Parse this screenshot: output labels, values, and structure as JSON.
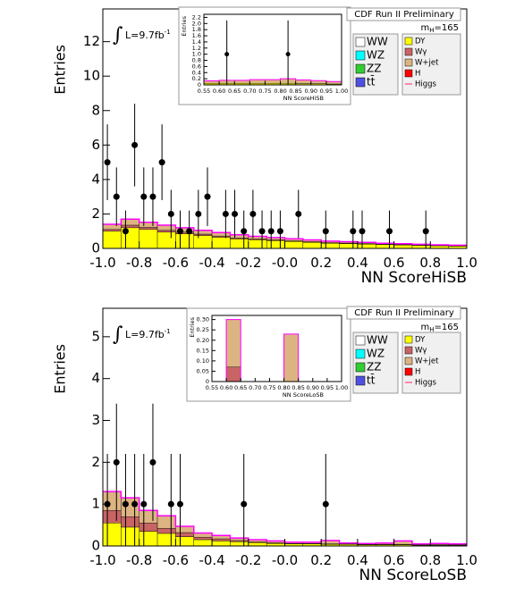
{
  "chart_data": [
    {
      "type": "histogram",
      "title": "CDF Run II Preliminary",
      "mass_label": {
        "text": "m",
        "sub": "H",
        "rest": "=165"
      },
      "lumi": {
        "symbol": "∫",
        "text": "L=9.7fb",
        "sup": "-1"
      },
      "xlabel": "NN ScoreHiSB",
      "ylabel": "Entries",
      "xlim": [
        -1,
        1
      ],
      "ylim": [
        0,
        13.9
      ],
      "xticks": [
        {
          "value": -1,
          "label": "-1.0"
        },
        -0.8,
        -0.6,
        -0.4,
        -0.2,
        {
          "value": 0,
          "label": "-0.0"
        },
        0.2,
        0.4,
        0.6,
        0.8,
        {
          "value": 1,
          "label": "1.0"
        }
      ],
      "yticks": [
        0,
        2,
        4,
        6,
        8,
        10,
        12
      ],
      "bins": [
        -1,
        -0.9,
        -0.8,
        -0.7,
        -0.6,
        -0.5,
        -0.4,
        -0.3,
        -0.2,
        -0.1,
        0,
        0.1,
        0.2,
        0.3,
        0.4,
        0.5,
        0.6,
        0.7,
        0.8,
        0.9,
        1
      ],
      "series": [
        {
          "name": "DY",
          "color": "#ffff00",
          "values": [
            1.0,
            1.2,
            1.1,
            0.95,
            0.85,
            0.75,
            0.65,
            0.55,
            0.5,
            0.45,
            0.4,
            0.35,
            0.3,
            0.28,
            0.25,
            0.22,
            0.2,
            0.17,
            0.15,
            0.13
          ]
        },
        {
          "name": "Wγ",
          "color": "#c86464",
          "values": [
            0.1,
            0.15,
            0.12,
            0.1,
            0.1,
            0.08,
            0.07,
            0.06,
            0.05,
            0.05,
            0.04,
            0.04,
            0.03,
            0.03,
            0.03,
            0.02,
            0.02,
            0.02,
            0.02,
            0.02
          ]
        },
        {
          "name": "W+jet",
          "color": "#dcb482",
          "values": [
            0.3,
            0.35,
            0.3,
            0.3,
            0.25,
            0.22,
            0.2,
            0.18,
            0.15,
            0.13,
            0.12,
            0.1,
            0.09,
            0.08,
            0.07,
            0.06,
            0.05,
            0.05,
            0.04,
            0.04
          ]
        }
      ],
      "legend": [
        {
          "name": "WW",
          "color": "#ffffff"
        },
        {
          "name": "WZ",
          "color": "#00ffff"
        },
        {
          "name": "ZZ",
          "color": "#33cc33"
        },
        {
          "name": "tt̄",
          "color": "#5050e0"
        },
        {
          "name": "H",
          "color": "#ff0000"
        },
        {
          "name": "Higgs",
          "color": "#ff6699",
          "line": true
        }
      ],
      "points": {
        "x": [
          -0.975,
          -0.925,
          -0.875,
          -0.825,
          -0.775,
          -0.725,
          -0.675,
          -0.625,
          -0.575,
          -0.525,
          -0.475,
          -0.425,
          -0.325,
          -0.275,
          -0.225,
          -0.175,
          -0.125,
          -0.075,
          -0.025,
          0.075,
          0.225,
          0.375,
          0.425,
          0.575,
          0.775
        ],
        "y": [
          5,
          3,
          1,
          6,
          3,
          3,
          5,
          2,
          1,
          1,
          2,
          3,
          2,
          2,
          1,
          2,
          1,
          1,
          1,
          2,
          1,
          1,
          1,
          1,
          1
        ],
        "err": [
          2.2,
          1.7,
          1.2,
          2.4,
          1.7,
          1.7,
          2.2,
          1.4,
          1.2,
          1.2,
          1.4,
          1.7,
          1.4,
          1.4,
          1.2,
          1.4,
          1.2,
          1.2,
          1.2,
          1.4,
          1.2,
          1.2,
          1.2,
          1.2,
          1.2
        ]
      },
      "inset": {
        "xlabel": "NN ScoreHiSB",
        "ylabel": "Entries",
        "xlim": [
          0.55,
          1
        ],
        "ylim": [
          0,
          2.3
        ],
        "xticks": [
          0.55,
          {
            "value": 0.6,
            "label": "0.60"
          },
          0.65,
          {
            "value": 0.7,
            "label": "0.70"
          },
          0.75,
          {
            "value": 0.8,
            "label": "0.80"
          },
          0.85,
          {
            "value": 0.9,
            "label": "0.90"
          },
          0.95,
          {
            "value": 1,
            "label": "1.00"
          }
        ],
        "yticks": [
          0,
          0.2,
          0.4,
          0.6,
          0.8,
          {
            "value": 1,
            "label": "1.0"
          },
          1.2,
          1.4,
          1.6,
          1.8,
          {
            "value": 2,
            "label": "2.0"
          },
          2.2
        ],
        "bins": [
          0.55,
          0.6,
          0.65,
          0.7,
          0.75,
          0.8,
          0.85,
          0.9,
          0.95,
          1
        ],
        "series": [
          {
            "color": "#ffff00",
            "values": [
              0.05,
              0.05,
              0.05,
              0.05,
              0.05,
              0.05,
              0.04,
              0.04,
              0.03
            ]
          },
          {
            "color": "#dcb482",
            "values": [
              0.08,
              0.1,
              0.1,
              0.12,
              0.12,
              0.15,
              0.12,
              0.1,
              0.08
            ]
          }
        ],
        "points": {
          "x": [
            0.625,
            0.825
          ],
          "y": [
            1,
            1
          ],
          "err": [
            1.1,
            1.1
          ]
        }
      }
    },
    {
      "type": "histogram",
      "title": "CDF Run II Preliminary",
      "mass_label": {
        "text": "m",
        "sub": "H",
        "rest": "=165"
      },
      "lumi": {
        "symbol": "∫",
        "text": "L=9.7fb",
        "sup": "-1"
      },
      "xlabel": "NN ScoreLoSB",
      "ylabel": "Entries",
      "xlim": [
        -1,
        1
      ],
      "ylim": [
        0,
        5.68
      ],
      "xticks": [
        {
          "value": -1,
          "label": "-1.0"
        },
        -0.8,
        -0.6,
        -0.4,
        -0.2,
        {
          "value": 0,
          "label": "-0.0"
        },
        0.2,
        0.4,
        0.6,
        0.8,
        {
          "value": 1,
          "label": "1.0"
        }
      ],
      "yticks": [
        0,
        1,
        2,
        3,
        4,
        5
      ],
      "bins": [
        -1,
        -0.9,
        -0.8,
        -0.7,
        -0.6,
        -0.5,
        -0.4,
        -0.3,
        -0.2,
        -0.1,
        0,
        0.1,
        0.2,
        0.3,
        0.4,
        0.5,
        0.6,
        0.7,
        0.8,
        0.9,
        1
      ],
      "series": [
        {
          "name": "DY",
          "color": "#ffff00",
          "values": [
            0.55,
            0.45,
            0.35,
            0.3,
            0.22,
            0.15,
            0.12,
            0.1,
            0.08,
            0.06,
            0.05,
            0.05,
            0.04,
            0.04,
            0.03,
            0.03,
            0.03,
            0.02,
            0.02,
            0.02
          ]
        },
        {
          "name": "Wγ",
          "color": "#c86464",
          "values": [
            0.3,
            0.25,
            0.2,
            0.12,
            0.1,
            0.06,
            0.05,
            0.03,
            0.02,
            0.02,
            0.01,
            0.01,
            0.01,
            0.01,
            0.01,
            0.01,
            0.01,
            0.01,
            0.01,
            0.01
          ]
        },
        {
          "name": "W+jet",
          "color": "#dcb482",
          "values": [
            0.45,
            0.45,
            0.3,
            0.3,
            0.15,
            0.1,
            0.08,
            0.06,
            0.05,
            0.04,
            0.03,
            0.03,
            0.08,
            0.02,
            0.02,
            0.03,
            0.08,
            0.02,
            0.03,
            0.02
          ]
        }
      ],
      "legend": [
        {
          "name": "WW",
          "color": "#ffffff"
        },
        {
          "name": "WZ",
          "color": "#00ffff"
        },
        {
          "name": "ZZ",
          "color": "#33cc33"
        },
        {
          "name": "tt̄",
          "color": "#5050e0"
        },
        {
          "name": "H",
          "color": "#ff0000"
        },
        {
          "name": "Higgs",
          "color": "#ff6699",
          "line": true
        }
      ],
      "points": {
        "x": [
          -0.975,
          -0.925,
          -0.875,
          -0.825,
          -0.775,
          -0.725,
          -0.625,
          -0.575,
          -0.225,
          0.225
        ],
        "y": [
          1,
          2,
          1,
          1,
          1,
          2,
          1,
          1,
          1,
          1
        ],
        "err": [
          1.2,
          1.4,
          1.2,
          1.2,
          1.2,
          1.4,
          1.2,
          1.2,
          1.2,
          1.2
        ]
      },
      "inset": {
        "xlabel": "NN ScoreLoSB",
        "ylabel": "Entries",
        "xlim": [
          0.55,
          1
        ],
        "ylim": [
          0,
          0.32
        ],
        "xticks": [
          0.55,
          {
            "value": 0.6,
            "label": "0.60"
          },
          0.65,
          {
            "value": 0.7,
            "label": "0.70"
          },
          0.75,
          {
            "value": 0.8,
            "label": "0.80"
          },
          0.85,
          {
            "value": 0.9,
            "label": "0.90"
          },
          0.95,
          {
            "value": 1,
            "label": "1.00"
          }
        ],
        "yticks": [
          0,
          0.05,
          {
            "value": 0.1,
            "label": "0.10"
          },
          0.15,
          {
            "value": 0.2,
            "label": "0.20"
          },
          0.25,
          {
            "value": 0.3,
            "label": "0.30"
          }
        ],
        "bins": [
          0.55,
          0.6,
          0.65,
          0.7,
          0.75,
          0.8,
          0.85,
          0.9,
          0.95,
          1
        ],
        "series": [
          {
            "color": "#c86464",
            "values": [
              0,
              0.07,
              0,
              0,
              0,
              0,
              0,
              0,
              0
            ]
          },
          {
            "color": "#dcb482",
            "values": [
              0,
              0.23,
              0,
              0,
              0,
              0.23,
              0,
              0,
              0
            ]
          }
        ]
      }
    }
  ]
}
